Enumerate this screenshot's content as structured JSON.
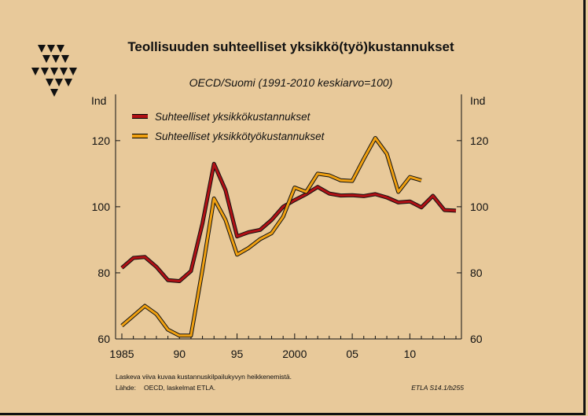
{
  "chart_data": {
    "type": "line",
    "title": "Teollisuuden suhteelliset yksikkö(työ)kustannukset",
    "subtitle": "OECD/Suomi (1991-2010 keskiarvo=100)",
    "ylabel_left": "Ind",
    "ylabel_right": "Ind",
    "xlim": [
      1985,
      2014
    ],
    "ylim": [
      60,
      134
    ],
    "y_ticks": [
      60,
      80,
      100,
      120
    ],
    "x_ticks": [
      {
        "value": 1985,
        "label": "1985"
      },
      {
        "value": 1990,
        "label": "90"
      },
      {
        "value": 1995,
        "label": "95"
      },
      {
        "value": 2000,
        "label": "2000"
      },
      {
        "value": 2005,
        "label": "05"
      },
      {
        "value": 2010,
        "label": "10"
      }
    ],
    "legend_position": "top-left",
    "series": [
      {
        "name": "Suhteelliset yksikkökustannukset",
        "color": "#b01015",
        "x": [
          1985,
          1986,
          1987,
          1988,
          1989,
          1990,
          1991,
          1992,
          1993,
          1994,
          1995,
          1996,
          1997,
          1998,
          1999,
          2000,
          2001,
          2002,
          2003,
          2004,
          2005,
          2006,
          2007,
          2008,
          2009,
          2010,
          2011,
          2012,
          2013,
          2014
        ],
        "values": [
          81.5,
          84.5,
          84.8,
          81.8,
          77.8,
          77.5,
          80.5,
          95,
          113,
          105,
          91,
          92.3,
          93,
          96,
          100,
          102,
          103.8,
          106,
          104,
          103.4,
          103.5,
          103.2,
          103.8,
          102.8,
          101.3,
          101.6,
          99.8,
          103.3,
          99,
          98.8
        ]
      },
      {
        "name": "Suhteelliset yksikkötyökustannukset",
        "color": "#f0a010",
        "x": [
          1985,
          1986,
          1987,
          1988,
          1989,
          1990,
          1991,
          1992,
          1993,
          1994,
          1995,
          1996,
          1997,
          1998,
          1999,
          2000,
          2001,
          2002,
          2003,
          2004,
          2005,
          2006,
          2007,
          2008,
          2009,
          2010,
          2011
        ],
        "values": [
          64,
          67,
          70,
          67.5,
          62.8,
          61,
          61,
          81,
          102.5,
          96,
          85.5,
          87.5,
          90.2,
          92,
          97,
          105.8,
          104.5,
          110,
          109.5,
          108,
          107.8,
          114.5,
          120.8,
          116,
          104.5,
          109,
          108
        ]
      }
    ]
  },
  "footnotes": {
    "line1": "Laskeva viiva kuvaa kustannuskilpailukyvyn heikkenemistä.",
    "source_label": "Lähde:",
    "source_text": "OECD, laskelmat ETLA.",
    "code": "ETLA S14.1/b255"
  },
  "colors": {
    "background": "#e8c99a",
    "axis": "#111111",
    "logo": "#111111"
  },
  "icons": {
    "logo": "etla-logo-icon"
  }
}
